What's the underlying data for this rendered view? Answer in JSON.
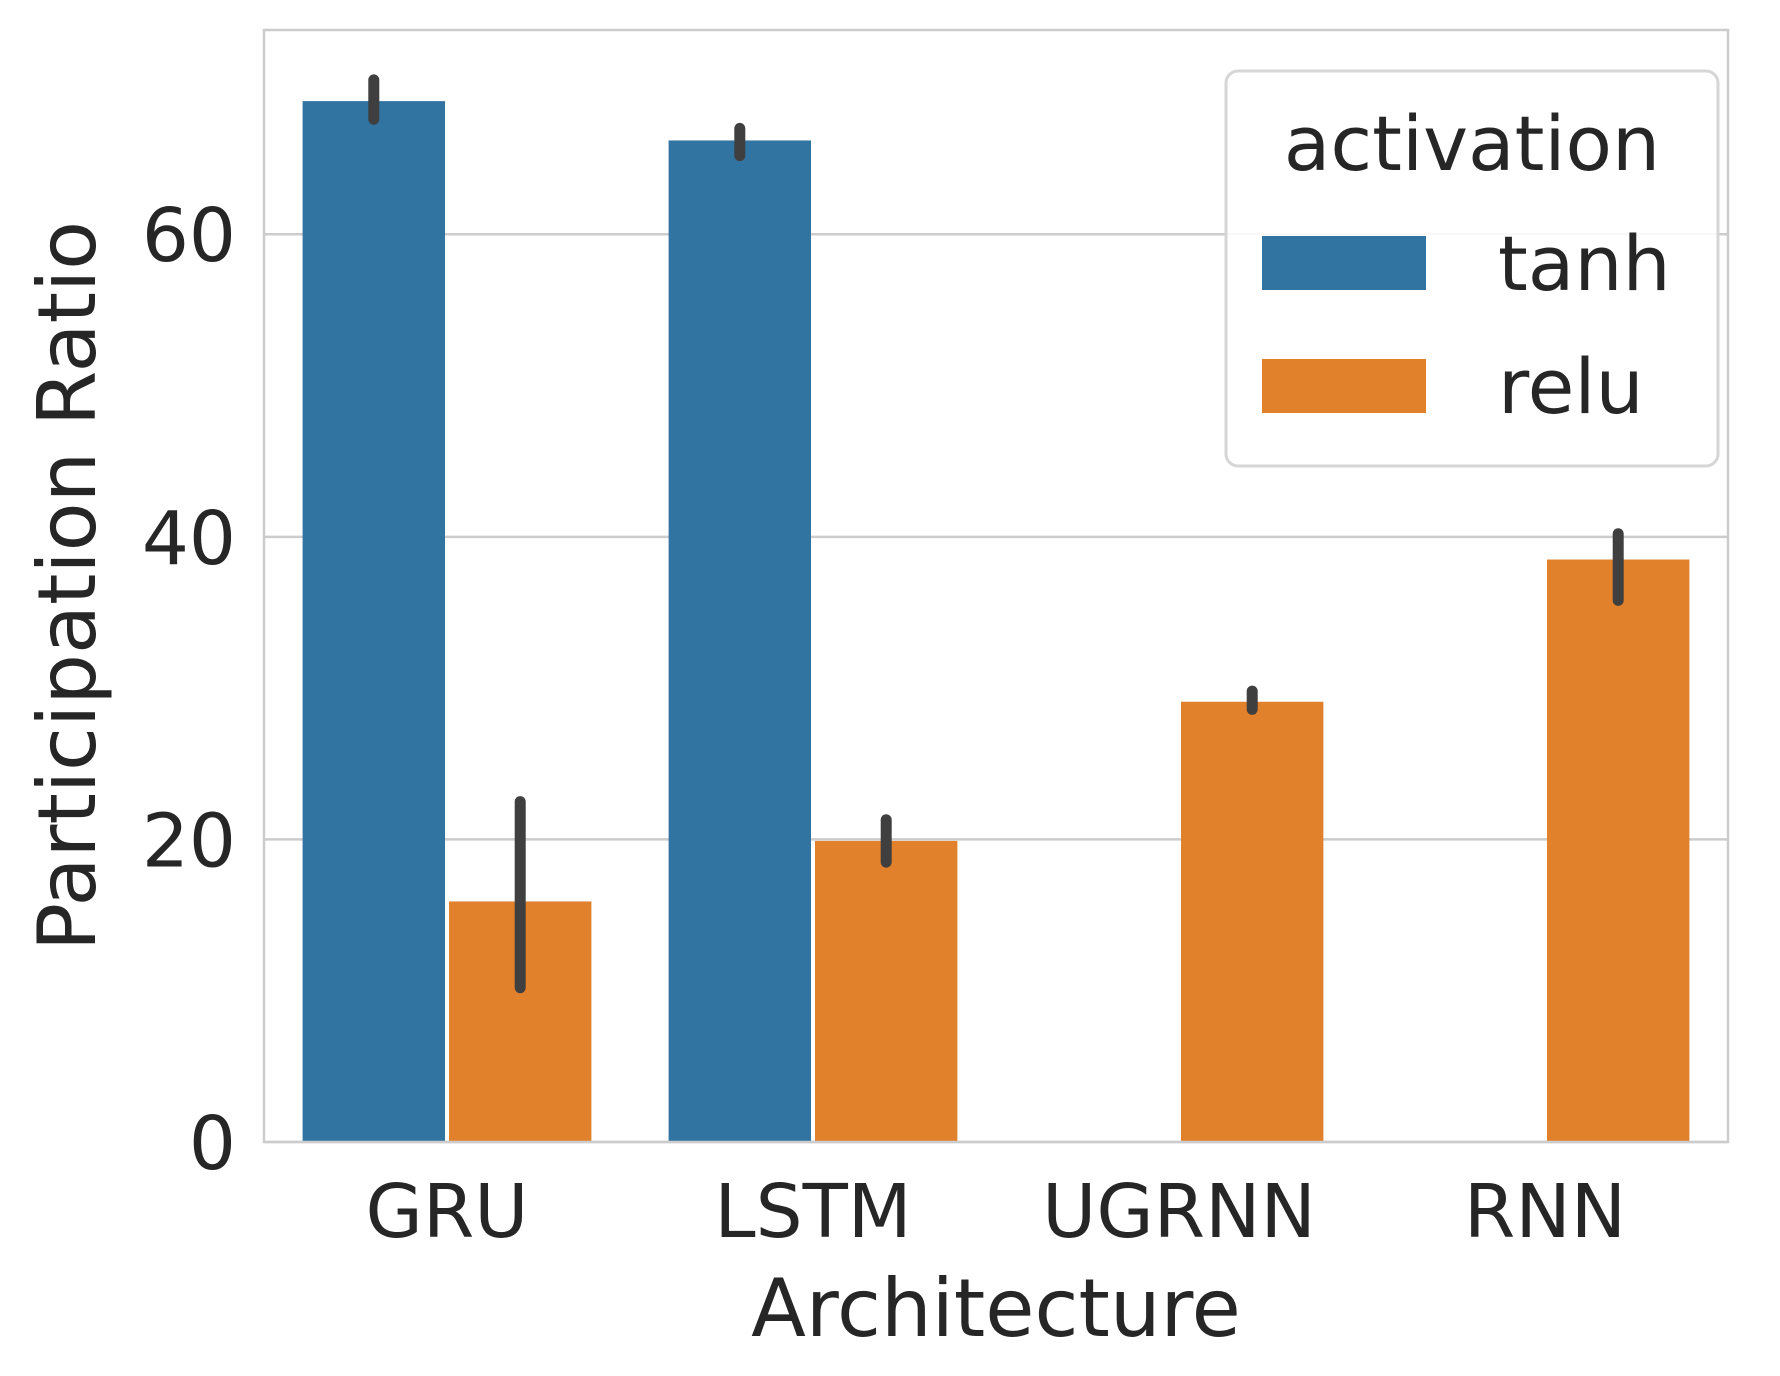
{
  "chart_data": {
    "type": "bar",
    "xlabel": "Architecture",
    "ylabel": "Participation Ratio",
    "categories": [
      "GRU",
      "LSTM",
      "UGRNN",
      "RNN"
    ],
    "series": [
      {
        "name": "tanh",
        "color": "#3274a1",
        "values": [
          68.8,
          66.2,
          null,
          null
        ],
        "ci_low": [
          67.6,
          65.2,
          null,
          null
        ],
        "ci_high": [
          70.2,
          67.0,
          null,
          null
        ]
      },
      {
        "name": "relu",
        "color": "#e1812c",
        "values": [
          15.9,
          19.9,
          29.1,
          38.5
        ],
        "ci_low": [
          10.2,
          18.5,
          28.6,
          35.8
        ],
        "ci_high": [
          22.5,
          21.3,
          29.8,
          40.2
        ]
      }
    ],
    "ylim": [
      0,
      73.5
    ],
    "yticks": [
      0,
      20,
      40,
      60
    ],
    "grid": true,
    "legend": {
      "title": "activation",
      "placement": "top-right"
    }
  }
}
